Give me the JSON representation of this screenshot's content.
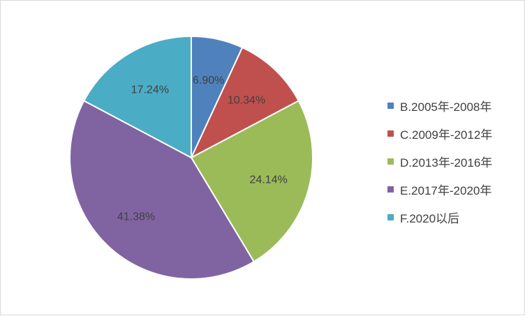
{
  "chart_data": {
    "type": "pie",
    "title": "",
    "categories": [
      "B.2005年-2008年",
      "C.2009年-2012年",
      "D.2013年-2016年",
      "E.2017年-2020年",
      "F.2020以后"
    ],
    "values": [
      6.9,
      10.34,
      24.14,
      41.38,
      17.24
    ],
    "labels": [
      "6.90%",
      "10.34%",
      "24.14%",
      "41.38%",
      "17.24%"
    ],
    "colors": [
      "#4f81bd",
      "#c0504d",
      "#9bbb59",
      "#8064a2",
      "#4bacc6"
    ],
    "legend_position": "right",
    "start_angle": "12 o'clock",
    "direction": "clockwise"
  }
}
